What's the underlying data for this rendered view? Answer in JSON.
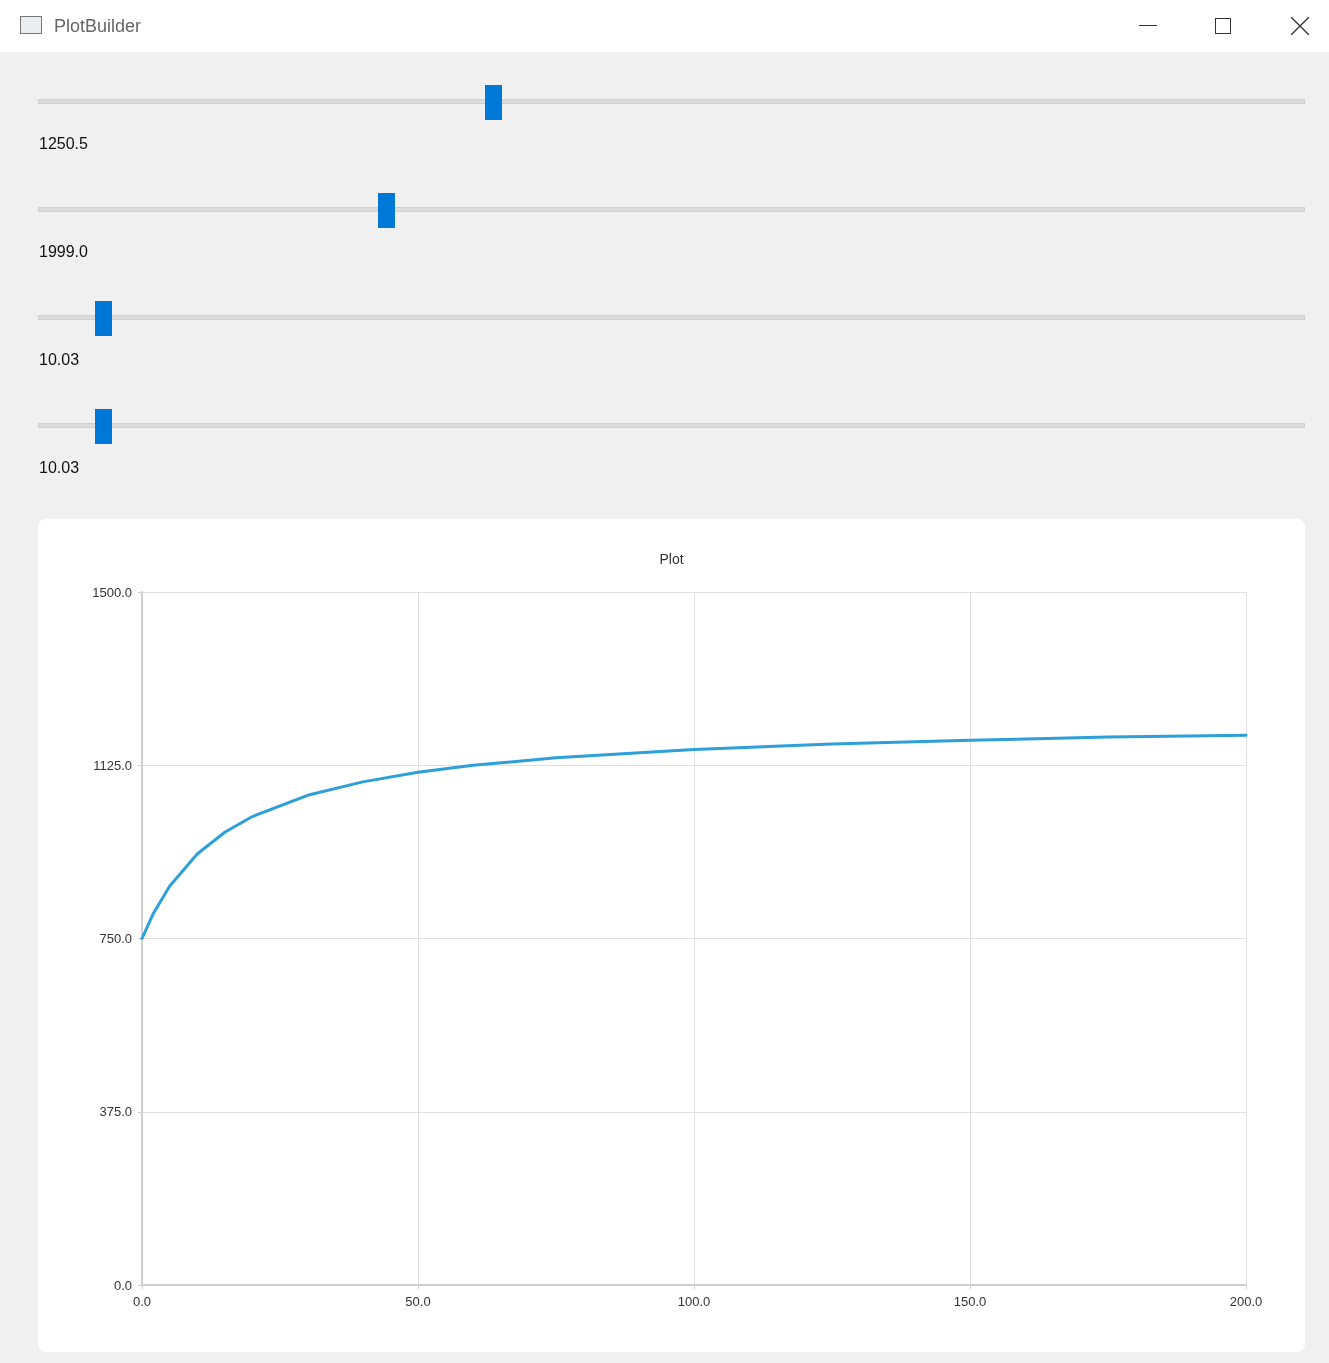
{
  "chart_data": {
    "type": "line",
    "title": "Plot",
    "annotations": [
      "PlotBuilder",
      "1250.5",
      "1999.0",
      "10.03",
      "10.03"
    ],
    "x": [
      0,
      2,
      5,
      10,
      15,
      20,
      30,
      40,
      50,
      60,
      75,
      100,
      125,
      150,
      175,
      200
    ],
    "series": [
      {
        "color": "#2d9fd9",
        "values": [
          750,
          803,
          863,
          933,
          980,
          1014,
          1060,
          1089,
          1110,
          1125,
          1141,
          1159,
          1171,
          1179,
          1186,
          1190
        ]
      }
    ],
    "xlim": [
      0,
      200
    ],
    "xticks": [
      {
        "value": 0,
        "label": "0.0"
      },
      {
        "value": 50,
        "label": "50.0"
      },
      {
        "value": 100,
        "label": "100.0"
      },
      {
        "value": 150,
        "label": "150.0"
      },
      {
        "value": 200,
        "label": "200.0"
      }
    ],
    "ylim": [
      0,
      1500
    ],
    "yticks": [
      {
        "value": 0,
        "label": "0.0"
      },
      {
        "value": 375,
        "label": "375.0"
      },
      {
        "value": 750,
        "label": "750.0"
      },
      {
        "value": 1125,
        "label": "1125.0"
      },
      {
        "value": 1500,
        "label": "1500.0"
      }
    ],
    "grid": true,
    "marker": "none",
    "line_style": "solid"
  }
}
